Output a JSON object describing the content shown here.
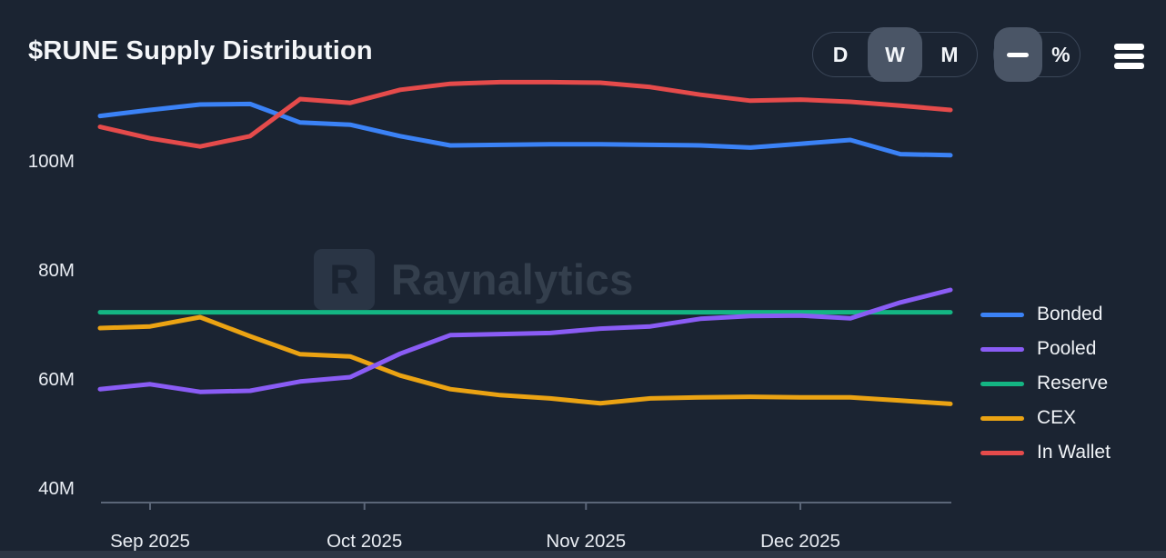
{
  "header": {
    "title": "$RUNE Supply Distribution"
  },
  "toolbar": {
    "interval_options": [
      {
        "label": "D",
        "selected": false
      },
      {
        "label": "W",
        "selected": true
      },
      {
        "label": "M",
        "selected": false
      }
    ],
    "display_modes": [
      {
        "name": "absolute-line",
        "icon": "line-dash-icon",
        "selected": true
      },
      {
        "name": "percent",
        "label": "%",
        "selected": false
      }
    ],
    "menu_icon": "hamburger-icon"
  },
  "watermark": {
    "logo_letter": "R",
    "text": "Raynalytics"
  },
  "chart_data": {
    "type": "line",
    "title": "$RUNE Supply Distribution",
    "interval": "weekly",
    "unit": "M RUNE",
    "x": [
      "Aug 25",
      "Sep 1",
      "Sep 8",
      "Sep 15",
      "Sep 22",
      "Sep 29",
      "Oct 6",
      "Oct 13",
      "Oct 20",
      "Oct 27",
      "Nov 3",
      "Nov 10",
      "Nov 17",
      "Nov 24",
      "Dec 1",
      "Dec 8",
      "Dec 15",
      "Dec 22"
    ],
    "x_days": [
      0,
      7,
      14,
      21,
      28,
      35,
      42,
      49,
      56,
      63,
      70,
      77,
      84,
      91,
      98,
      105,
      112,
      119
    ],
    "series": [
      {
        "name": "Bonded",
        "color": "#3b82f6",
        "values": [
          108.4,
          109.5,
          110.5,
          110.6,
          107.2,
          106.8,
          104.7,
          103.0,
          103.1,
          103.2,
          103.2,
          103.1,
          103.0,
          102.6,
          103.3,
          104.0,
          101.4,
          101.2
        ]
      },
      {
        "name": "Pooled",
        "color": "#8a5cf5",
        "values": [
          58.3,
          59.2,
          57.8,
          58.0,
          59.7,
          60.5,
          64.8,
          68.2,
          68.4,
          68.6,
          69.4,
          69.8,
          71.2,
          71.7,
          71.8,
          71.3,
          74.2,
          76.5
        ]
      },
      {
        "name": "Reserve",
        "color": "#14b583",
        "values": [
          72.4,
          72.4,
          72.4,
          72.4,
          72.4,
          72.4,
          72.4,
          72.4,
          72.4,
          72.4,
          72.4,
          72.4,
          72.4,
          72.4,
          72.4,
          72.4,
          72.4,
          72.4
        ]
      },
      {
        "name": "CEX",
        "color": "#eba313",
        "values": [
          69.5,
          69.8,
          71.5,
          68.0,
          64.7,
          64.3,
          60.8,
          58.3,
          57.2,
          56.6,
          55.7,
          56.6,
          56.8,
          56.9,
          56.8,
          56.8,
          56.2,
          55.6
        ]
      },
      {
        "name": "In Wallet",
        "color": "#e54b4b",
        "values": [
          106.4,
          104.3,
          102.8,
          104.7,
          111.5,
          110.8,
          113.2,
          114.3,
          114.6,
          114.6,
          114.5,
          113.7,
          112.3,
          111.2,
          111.4,
          111.0,
          110.3,
          109.5
        ]
      }
    ],
    "y_ticks": [
      {
        "label": "100M",
        "value": 100
      },
      {
        "label": "80M",
        "value": 80
      },
      {
        "label": "60M",
        "value": 60
      },
      {
        "label": "40M",
        "value": 40
      }
    ],
    "x_ticks": [
      {
        "label": "Sep 2025",
        "day": 7
      },
      {
        "label": "Oct 2025",
        "day": 37
      },
      {
        "label": "Nov 2025",
        "day": 68
      },
      {
        "label": "Dec 2025",
        "day": 98
      }
    ],
    "ylim": [
      38,
      117
    ],
    "grid": false,
    "legend_position": "right"
  }
}
